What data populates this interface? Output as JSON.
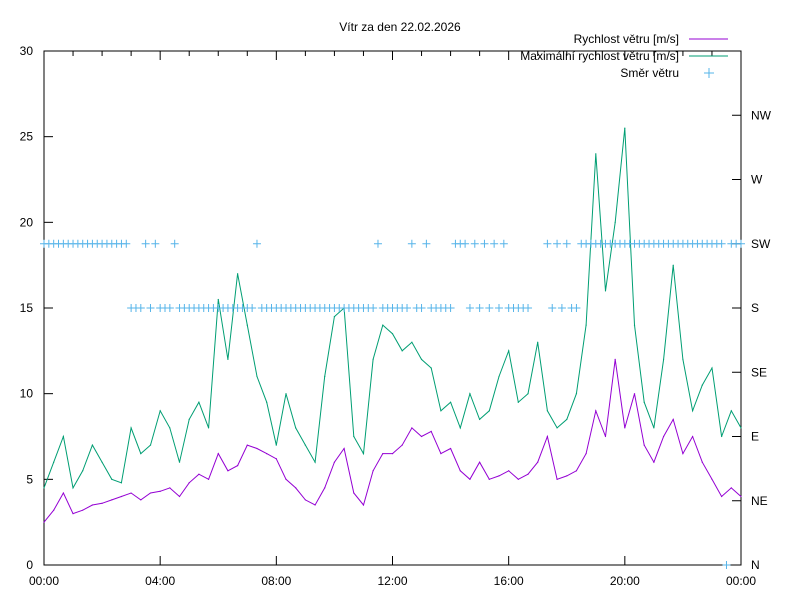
{
  "chart_data": {
    "type": "line",
    "title": "Vítr za den 22.02.2026",
    "xlabel": "",
    "ylabel": "",
    "xlim_hours": [
      0,
      24
    ],
    "ylim": [
      0,
      30
    ],
    "x_ticks": [
      "00:00",
      "04:00",
      "08:00",
      "12:00",
      "16:00",
      "20:00",
      "00:00"
    ],
    "y_ticks": [
      "0",
      "5",
      "10",
      "15",
      "20",
      "25",
      "30"
    ],
    "y2_ticks": [
      "N",
      "NE",
      "E",
      "SE",
      "S",
      "SW",
      "W",
      "NW"
    ],
    "grid": false,
    "legend_position": "top-right",
    "colors": {
      "speed": "#9400d3",
      "gust": "#009e73",
      "direction": "#56b4e9"
    },
    "sample_step_minutes_speed": 20,
    "sample_step_minutes_direction": 10,
    "series": [
      {
        "name": "Rychlost větru [m/s]",
        "values": [
          2.5,
          3.2,
          4.2,
          3.0,
          3.2,
          3.5,
          3.6,
          3.8,
          4.0,
          4.2,
          3.8,
          4.2,
          4.3,
          4.5,
          4.0,
          4.8,
          5.3,
          5.0,
          6.5,
          5.5,
          5.8,
          7.0,
          6.8,
          6.5,
          6.2,
          5.0,
          4.5,
          3.8,
          3.5,
          4.5,
          6.0,
          6.8,
          4.2,
          3.5,
          5.5,
          6.5,
          6.5,
          7.0,
          8.0,
          7.5,
          7.8,
          6.5,
          6.8,
          5.5,
          5.0,
          6.0,
          5.0,
          5.2,
          5.5,
          5.0,
          5.3,
          6.0,
          7.5,
          5.0,
          5.2,
          5.5,
          6.5,
          9.0,
          7.5,
          12.0,
          8.0,
          10.0,
          7.0,
          6.0,
          7.5,
          8.5,
          6.5,
          7.5,
          6.0,
          5.0,
          4.0,
          4.5,
          4.0
        ]
      },
      {
        "name": "Maximální rychlost větru [m/s]",
        "values": [
          4.5,
          6.0,
          7.5,
          4.5,
          5.5,
          7.0,
          6.0,
          5.0,
          4.8,
          8.0,
          6.5,
          7.0,
          9.0,
          8.0,
          6.0,
          8.5,
          9.5,
          8.0,
          15.5,
          12.0,
          17.0,
          14.0,
          11.0,
          9.5,
          7.0,
          10.0,
          8.0,
          7.0,
          6.0,
          11.0,
          14.5,
          15.0,
          7.5,
          6.5,
          12.0,
          14.0,
          13.5,
          12.5,
          13.0,
          12.0,
          11.5,
          9.0,
          9.5,
          8.0,
          10.0,
          8.5,
          9.0,
          11.0,
          12.5,
          9.5,
          10.0,
          13.0,
          9.0,
          8.0,
          8.5,
          10.0,
          14.0,
          24.0,
          16.0,
          20.0,
          25.5,
          14.0,
          9.5,
          8.0,
          12.0,
          17.5,
          12.0,
          9.0,
          10.5,
          11.5,
          7.5,
          9.0,
          8.0
        ]
      },
      {
        "name": "Směr větru",
        "values": [
          "SW",
          "SW",
          "SW",
          "SW",
          "SW",
          "SW",
          "SW",
          "SW",
          "SW",
          "SW",
          "SW",
          "SW",
          "SW",
          "SW",
          "SW",
          "SW",
          "SW",
          "SW",
          "S",
          "S",
          "S",
          "SW",
          "S",
          "SW",
          "S",
          "S",
          "S",
          "SW",
          "S",
          "S",
          "S",
          "S",
          "S",
          "S",
          "S",
          "S",
          "S",
          "S",
          "S",
          "S",
          "S",
          "S",
          "S",
          "S",
          "SW",
          "S",
          "S",
          "S",
          "S",
          "S",
          "S",
          "S",
          "S",
          "S",
          "S",
          "S",
          "S",
          "S",
          "S",
          "S",
          "S",
          "S",
          "S",
          "S",
          "S",
          "S",
          "S",
          "S",
          "S",
          "SW",
          "S",
          "S",
          "S",
          "S",
          "S",
          "S",
          "SW",
          "S",
          "S",
          "SW",
          "S",
          "S",
          "S",
          "S",
          "S",
          "SW",
          "SW",
          "SW",
          "S",
          "SW",
          "S",
          "SW",
          "S",
          "SW",
          "S",
          "SW",
          "S",
          "S",
          "S",
          "S",
          "S",
          null,
          null,
          null,
          "SW",
          "S",
          "SW",
          "S",
          "SW",
          "S",
          "S",
          "SW",
          "SW",
          "SW",
          "SW",
          "SW",
          "SW",
          "SW",
          "SW",
          "SW",
          "SW",
          "SW",
          "SW",
          "SW",
          "SW",
          "SW",
          "SW",
          "SW",
          "SW",
          "SW",
          "SW",
          "SW",
          "SW",
          "SW",
          "SW",
          "SW",
          "SW",
          "SW",
          "SW",
          "SW",
          "SW",
          "N",
          "SW",
          "SW",
          "SW"
        ]
      }
    ]
  }
}
